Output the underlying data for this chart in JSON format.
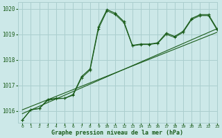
{
  "xlabel": "Graphe pression niveau de la mer (hPa)",
  "ylim": [
    1015.55,
    1020.25
  ],
  "xlim": [
    -0.5,
    23
  ],
  "yticks": [
    1016,
    1017,
    1018,
    1019,
    1020
  ],
  "xticks": [
    0,
    1,
    2,
    3,
    4,
    5,
    6,
    7,
    8,
    9,
    10,
    11,
    12,
    13,
    14,
    15,
    16,
    17,
    18,
    19,
    20,
    21,
    22,
    23
  ],
  "bg_color": "#cce8e8",
  "grid_color": "#aacece",
  "line_color": "#1a5c1a",
  "line1_x": [
    0,
    1,
    2,
    3,
    4,
    5,
    6,
    7,
    8,
    9,
    10,
    11,
    12,
    13,
    14,
    15,
    16,
    17,
    18,
    19,
    20,
    21,
    22,
    23
  ],
  "line1_y": [
    1015.65,
    1016.05,
    1016.1,
    1016.45,
    1016.5,
    1016.5,
    1016.65,
    1017.35,
    1017.65,
    1019.3,
    1019.97,
    1019.82,
    1019.5,
    1018.57,
    1018.62,
    1018.62,
    1018.67,
    1019.05,
    1018.92,
    1019.12,
    1019.62,
    1019.77,
    1019.77,
    1019.22
  ],
  "line2_x": [
    0,
    1,
    2,
    3,
    4,
    5,
    6,
    7,
    8,
    9,
    10,
    11,
    12,
    13,
    14,
    15,
    16,
    17,
    18,
    19,
    20,
    21,
    22,
    23
  ],
  "line2_y": [
    1015.65,
    1016.05,
    1016.1,
    1016.42,
    1016.48,
    1016.5,
    1016.62,
    1017.3,
    1017.6,
    1019.22,
    1019.92,
    1019.77,
    1019.45,
    1018.55,
    1018.6,
    1018.6,
    1018.65,
    1019.0,
    1018.88,
    1019.08,
    1019.58,
    1019.73,
    1019.73,
    1019.18
  ],
  "line3_x": [
    0,
    23
  ],
  "line3_y": [
    1015.9,
    1019.22
  ],
  "line4_x": [
    0,
    23
  ],
  "line4_y": [
    1016.05,
    1019.08
  ]
}
